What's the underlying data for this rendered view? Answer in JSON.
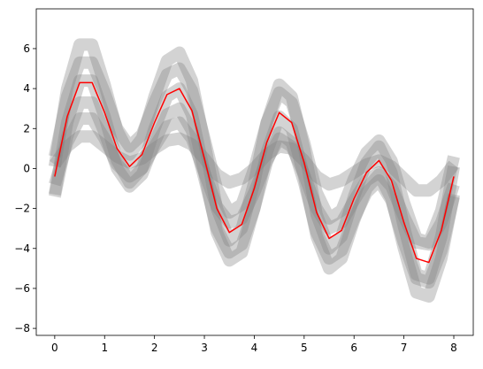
{
  "chart_data": {
    "type": "line",
    "x": [
      0,
      0.25,
      0.5,
      0.75,
      1,
      1.25,
      1.5,
      1.75,
      2,
      2.25,
      2.5,
      2.75,
      3,
      3.25,
      3.5,
      3.75,
      4,
      4.25,
      4.5,
      4.75,
      5,
      5.25,
      5.5,
      5.75,
      6,
      6.25,
      6.5,
      6.75,
      7,
      7.25,
      7.5,
      7.75,
      8
    ],
    "series": [
      {
        "color": "#808080",
        "values": [
          0.1,
          4.0,
          6.2,
          6.2,
          4.2,
          1.9,
          0.7,
          1.5,
          3.6,
          5.4,
          5.8,
          4.4,
          1.3,
          -2.0,
          -3.6,
          -3.0,
          -0.7,
          2.3,
          4.2,
          3.6,
          1.0,
          -2.3,
          -4.0,
          -3.4,
          -1.4,
          0.3,
          1.1,
          -0.2,
          -2.9,
          -5.3,
          -5.5,
          -3.4,
          0.1
        ]
      },
      {
        "color": "#808080",
        "values": [
          -0.8,
          1.3,
          2.5,
          2.5,
          1.5,
          0.2,
          -0.4,
          0.0,
          1.1,
          2.1,
          2.3,
          1.5,
          -0.2,
          -1.9,
          -2.7,
          -2.5,
          -1.2,
          0.4,
          1.5,
          1.1,
          -0.3,
          -2.0,
          -3.0,
          -2.7,
          -1.6,
          -0.6,
          -0.2,
          -0.9,
          -2.4,
          -3.7,
          -3.8,
          -2.7,
          -0.8
        ]
      },
      {
        "color": "#808080",
        "values": [
          0.6,
          3.6,
          5.3,
          5.3,
          3.8,
          2.0,
          1.1,
          1.7,
          3.3,
          4.7,
          5.0,
          3.9,
          1.5,
          -1.0,
          -2.2,
          -1.8,
          0.0,
          2.3,
          3.8,
          3.3,
          1.3,
          -1.2,
          -2.5,
          -2.1,
          -0.5,
          0.8,
          1.4,
          0.4,
          -1.7,
          -3.5,
          -3.7,
          -2.1,
          0.6
        ]
      },
      {
        "color": "#808080",
        "values": [
          -1.4,
          1.6,
          3.3,
          3.3,
          1.8,
          0.0,
          -0.9,
          -0.3,
          1.3,
          2.7,
          3.0,
          1.9,
          -0.5,
          -3.0,
          -4.2,
          -3.8,
          -2.0,
          0.3,
          1.8,
          1.3,
          -0.7,
          -3.2,
          -4.5,
          -4.1,
          -2.5,
          -1.2,
          -0.6,
          -1.6,
          -3.7,
          -5.5,
          -5.7,
          -4.1,
          -1.4
        ]
      },
      {
        "color": "#808080",
        "values": [
          -1.3,
          2.3,
          4.4,
          4.4,
          2.6,
          0.4,
          -0.7,
          0.0,
          2.0,
          3.6,
          4.0,
          2.7,
          -0.2,
          -3.2,
          -4.6,
          -4.2,
          -2.0,
          0.8,
          2.6,
          2.0,
          -0.4,
          -3.4,
          -5.0,
          -4.5,
          -2.6,
          -1.0,
          -0.3,
          -1.5,
          -4.0,
          -6.2,
          -6.4,
          -4.5,
          -1.3
        ]
      },
      {
        "color": "#808080",
        "values": [
          0.2,
          1.1,
          1.6,
          1.6,
          1.1,
          0.6,
          0.3,
          0.5,
          1.0,
          1.4,
          1.5,
          1.2,
          0.5,
          -0.3,
          -0.7,
          -0.5,
          0.0,
          0.7,
          1.1,
          1.0,
          0.4,
          -0.4,
          -0.8,
          -0.6,
          -0.2,
          0.2,
          0.4,
          0.1,
          -0.5,
          -1.1,
          -1.1,
          -0.6,
          0.2
        ]
      },
      {
        "color": "#ff0000",
        "values": [
          -0.4,
          2.6,
          4.3,
          4.3,
          2.8,
          1.0,
          0.1,
          0.7,
          2.3,
          3.7,
          4.0,
          2.9,
          0.5,
          -2.0,
          -3.2,
          -2.8,
          -1.0,
          1.3,
          2.8,
          2.3,
          0.3,
          -2.2,
          -3.5,
          -3.1,
          -1.5,
          -0.2,
          0.4,
          -0.6,
          -2.7,
          -4.5,
          -4.7,
          -3.1,
          -0.4
        ]
      }
    ],
    "xlim": [
      -0.37,
      8.39
    ],
    "ylim": [
      -8.35,
      7.99
    ],
    "xticks": [
      0,
      1,
      2,
      3,
      4,
      5,
      6,
      7,
      8
    ],
    "yticks": [
      {
        "value": -8,
        "label": "−8"
      },
      {
        "value": -6,
        "label": "−6"
      },
      {
        "value": -4,
        "label": "−4"
      },
      {
        "value": -2,
        "label": "−2"
      },
      0,
      2,
      4,
      6
    ]
  }
}
